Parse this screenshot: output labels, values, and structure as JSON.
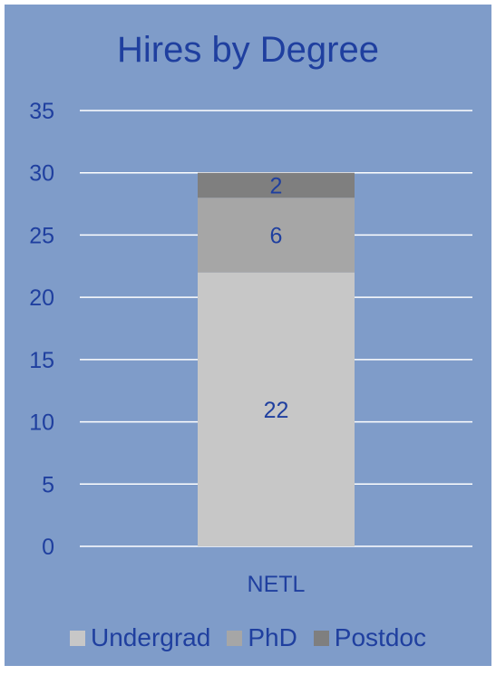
{
  "chart_data": {
    "type": "bar",
    "stacked": true,
    "title": "Hires by Degree",
    "categories": [
      "NETL"
    ],
    "series": [
      {
        "name": "Undergrad",
        "values": [
          22
        ],
        "color": "#c7c7c7"
      },
      {
        "name": "PhD",
        "values": [
          6
        ],
        "color": "#a6a6a6"
      },
      {
        "name": "Postdoc",
        "values": [
          2
        ],
        "color": "#7f7f7f"
      }
    ],
    "ylim": [
      0,
      35
    ],
    "yticks": [
      "0",
      "5",
      "10",
      "15",
      "20",
      "25",
      "30",
      "35"
    ],
    "grid": true,
    "legend_position": "bottom",
    "text_color": "#1f3f9f",
    "background_color": "#7f9cc9"
  }
}
